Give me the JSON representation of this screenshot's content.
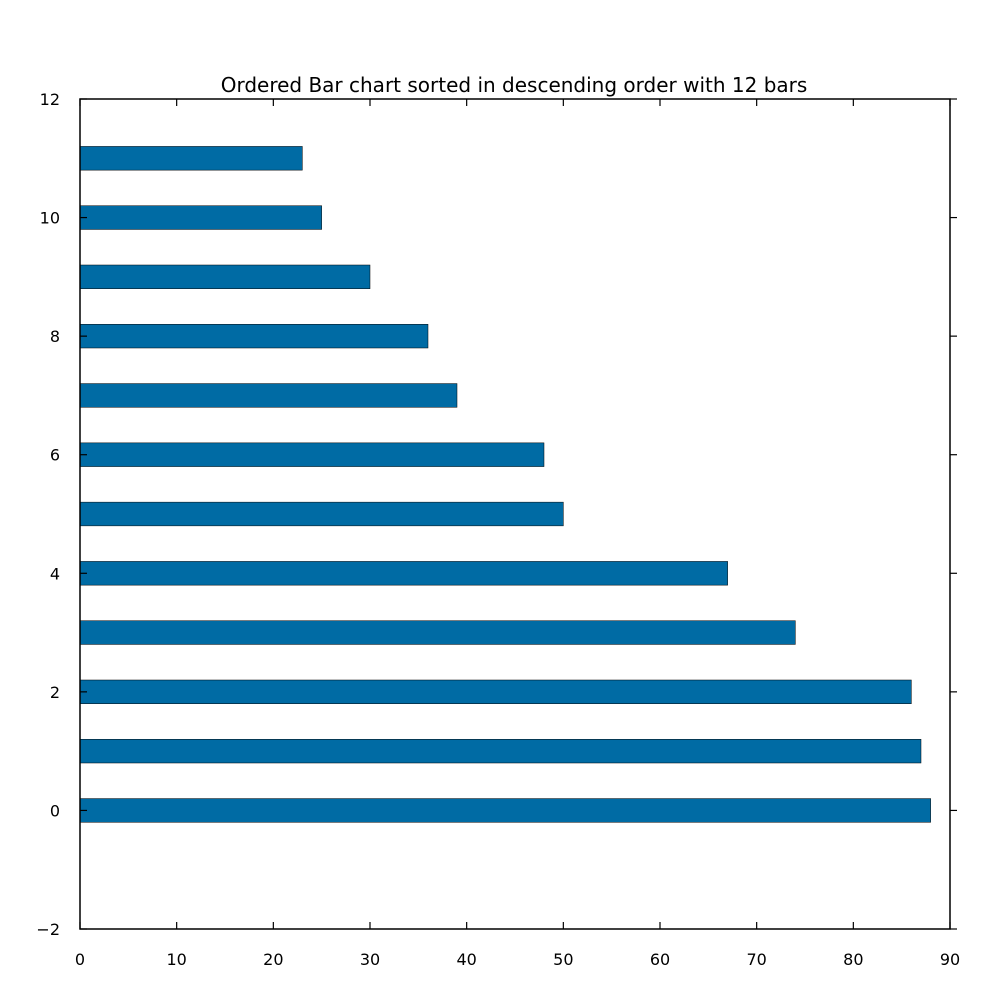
{
  "chart_data": {
    "type": "bar",
    "orientation": "horizontal",
    "title": "Ordered Bar chart sorted in descending order with 12 bars",
    "xlabel": "",
    "ylabel": "",
    "categories": [
      0,
      1,
      2,
      3,
      4,
      5,
      6,
      7,
      8,
      9,
      10,
      11
    ],
    "values": [
      88,
      87,
      86,
      74,
      67,
      50,
      48,
      39,
      36,
      30,
      25,
      23
    ],
    "bar_height": 0.4,
    "xlim": [
      0,
      90
    ],
    "ylim": [
      -2,
      12
    ],
    "xticks": [
      0,
      10,
      20,
      30,
      40,
      50,
      60,
      70,
      80,
      90
    ],
    "xtick_labels": [
      "0",
      "10",
      "20",
      "30",
      "40",
      "50",
      "60",
      "70",
      "80",
      "90"
    ],
    "yticks": [
      -2,
      0,
      2,
      4,
      6,
      8,
      10,
      12
    ],
    "ytick_labels": [
      "−2",
      "0",
      "2",
      "4",
      "6",
      "8",
      "10",
      "12"
    ],
    "grid": false,
    "legend": "none",
    "bar_color": "#006ba4"
  }
}
